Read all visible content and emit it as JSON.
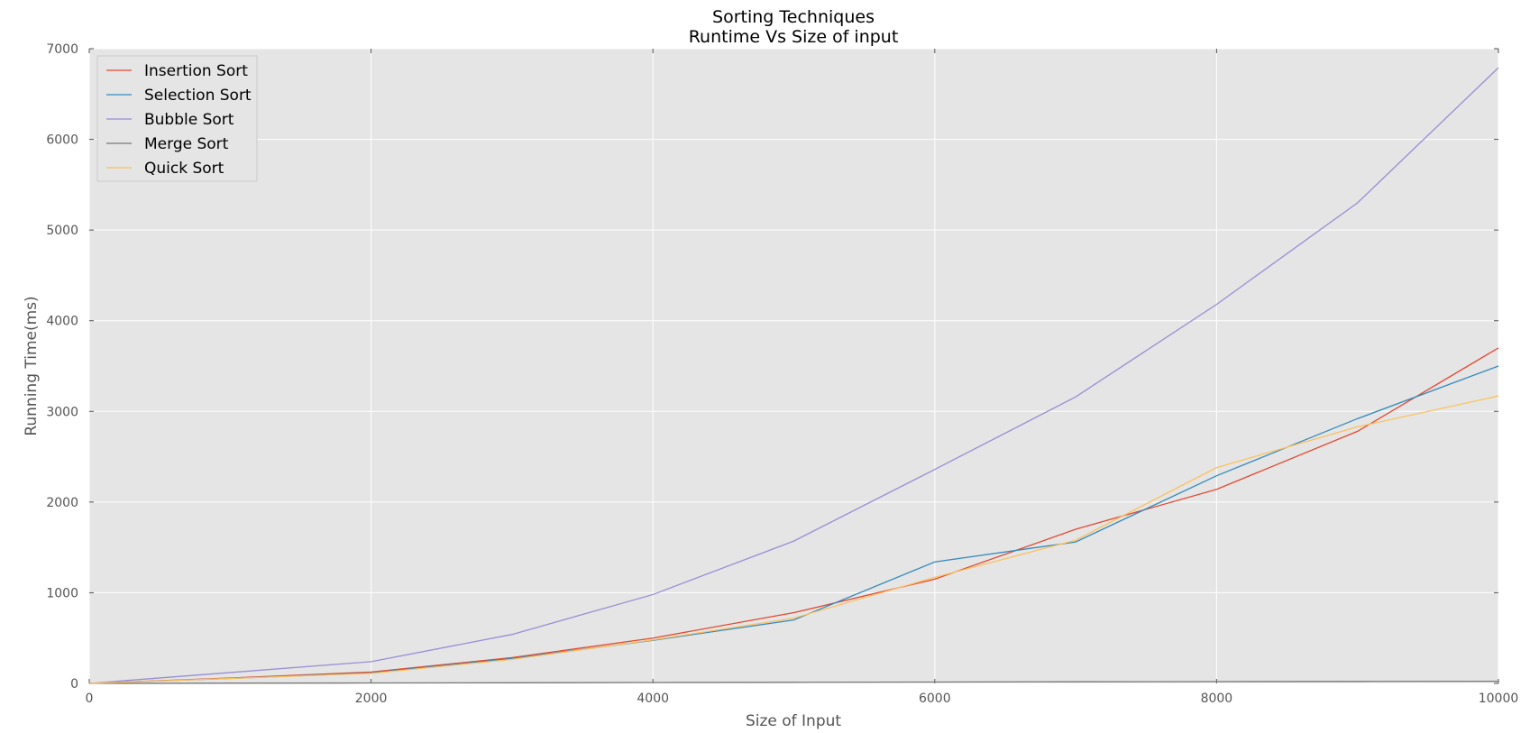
{
  "chart_data": {
    "type": "line",
    "title": [
      "Sorting Techniques",
      "Runtime Vs Size of input"
    ],
    "xlabel": "Size of Input",
    "ylabel": "Running Time(ms)",
    "xlim": [
      0,
      10000
    ],
    "ylim": [
      0,
      7000
    ],
    "xticks": [
      0,
      2000,
      4000,
      6000,
      8000,
      10000
    ],
    "yticks": [
      0,
      1000,
      2000,
      3000,
      4000,
      5000,
      6000,
      7000
    ],
    "grid": true,
    "legend_position": "upper-left",
    "x": [
      0,
      1000,
      2000,
      3000,
      4000,
      5000,
      6000,
      7000,
      8000,
      9000,
      10000
    ],
    "series": [
      {
        "name": "Insertion Sort",
        "color": "#e24a33",
        "values": [
          0,
          60,
          125,
          285,
          500,
          780,
          1150,
          1700,
          2140,
          2780,
          3700
        ]
      },
      {
        "name": "Selection Sort",
        "color": "#348abd",
        "values": [
          0,
          55,
          115,
          275,
          475,
          700,
          1340,
          1560,
          2290,
          2920,
          3500
        ]
      },
      {
        "name": "Bubble Sort",
        "color": "#988ed5",
        "values": [
          0,
          120,
          240,
          540,
          980,
          1570,
          2360,
          3160,
          4180,
          5300,
          6790
        ]
      },
      {
        "name": "Merge Sort",
        "color": "#777777",
        "values": [
          0,
          3,
          5,
          7,
          10,
          12,
          15,
          18,
          20,
          22,
          24
        ]
      },
      {
        "name": "Quick Sort",
        "color": "#fbc15e",
        "values": [
          0,
          55,
          110,
          265,
          480,
          720,
          1170,
          1580,
          2380,
          2830,
          3170
        ]
      }
    ]
  }
}
